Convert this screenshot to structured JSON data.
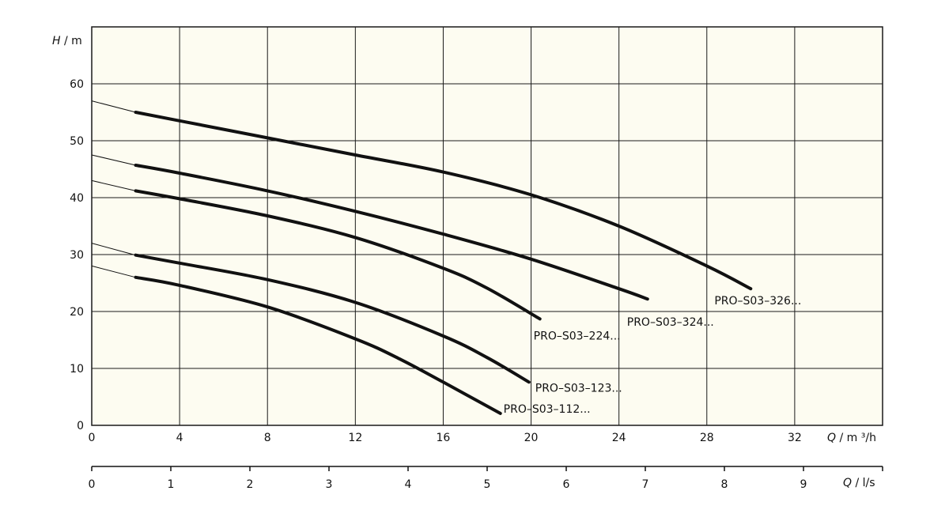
{
  "chart_data": {
    "type": "line",
    "title": "",
    "ylabel": {
      "symbol": "H",
      "unit": " / m"
    },
    "xlabel": {
      "symbol": "Q",
      "unit": " / m ³/h"
    },
    "x2label": {
      "symbol": "Q",
      "unit": " / l/s"
    },
    "xlim": [
      0,
      36
    ],
    "ylim": [
      0,
      70
    ],
    "x2lim": [
      0,
      10
    ],
    "x_ticks": [
      0,
      4,
      8,
      12,
      16,
      20,
      24,
      28,
      32
    ],
    "y_ticks": [
      0,
      10,
      20,
      30,
      40,
      50,
      60
    ],
    "x2_ticks": [
      0,
      1,
      2,
      3,
      4,
      5,
      6,
      7,
      8,
      9
    ],
    "grid": true,
    "background_color": "#fdfcf1",
    "series": [
      {
        "name": "PRO–S03–326...",
        "x": [
          2.0,
          4,
          8,
          12,
          16,
          20,
          24,
          28,
          30.0
        ],
        "y": [
          55,
          53.5,
          50.5,
          47.5,
          44.5,
          40.5,
          35,
          28,
          24
        ],
        "extension": [
          [
            0,
            57
          ],
          [
            2.0,
            55
          ]
        ]
      },
      {
        "name": "PRO–S03–324...",
        "x": [
          2.0,
          4,
          8,
          12,
          16,
          20,
          24,
          25.3
        ],
        "y": [
          45.7,
          44.3,
          41.2,
          37.6,
          33.6,
          29.2,
          24,
          22.2
        ],
        "extension": [
          [
            0,
            47.5
          ],
          [
            2.0,
            45.7
          ]
        ]
      },
      {
        "name": "PRO–S03–224...",
        "x": [
          2.0,
          4,
          8,
          12,
          16,
          18,
          20.4
        ],
        "y": [
          41.2,
          39.8,
          36.8,
          33,
          27.6,
          24.1,
          18.7
        ],
        "extension": [
          [
            0,
            43
          ],
          [
            2.0,
            41.2
          ]
        ]
      },
      {
        "name": "PRO–S03–123...",
        "x": [
          2.0,
          4,
          8,
          12,
          16,
          18,
          19.9
        ],
        "y": [
          29.9,
          28.5,
          25.6,
          21.6,
          15.7,
          11.9,
          7.6
        ],
        "extension": [
          [
            0,
            32
          ],
          [
            2.0,
            29.9
          ]
        ]
      },
      {
        "name": "PRO–S03–112...",
        "x": [
          2.0,
          4,
          8,
          12,
          14,
          16,
          18.6
        ],
        "y": [
          26,
          24.6,
          20.8,
          15.2,
          11.7,
          7.6,
          2.1
        ],
        "extension": [
          [
            0,
            28
          ],
          [
            2.0,
            26
          ]
        ]
      }
    ]
  }
}
